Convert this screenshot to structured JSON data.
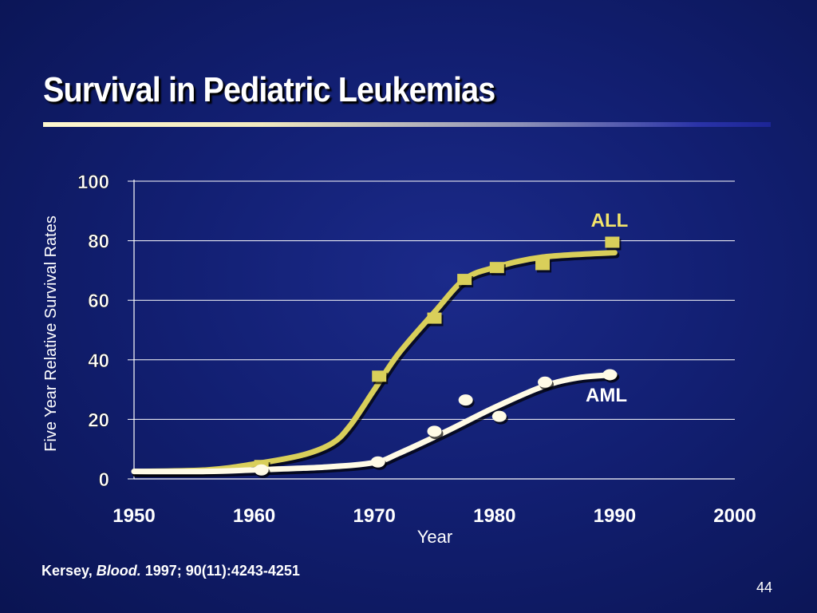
{
  "slide": {
    "title": "Survival in Pediatric Leukemias",
    "page_number": "44",
    "citation": {
      "author": "Kersey,",
      "journal": "Blood.",
      "details": "1997; 90(11):4243-4251"
    }
  },
  "colors": {
    "background": "#121f72",
    "all_series": "#d9cf5a",
    "aml_series": "#fffbe6",
    "text": "#ffffff",
    "all_label": "#f3e56a"
  },
  "chart_data": {
    "type": "line",
    "title": "",
    "xlabel": "Year",
    "ylabel": "Five Year Relative Survival Rates",
    "xlim": [
      1950,
      2000
    ],
    "ylim": [
      0,
      100
    ],
    "x_ticks": [
      "1950",
      "1960",
      "1970",
      "1980",
      "1990",
      "2000"
    ],
    "y_ticks": [
      "0",
      "20",
      "40",
      "60",
      "80",
      "100"
    ],
    "grid": "horizontal",
    "series": [
      {
        "name": "ALL",
        "marker": "square",
        "points": [
          [
            1960.6,
            4.5
          ],
          [
            1970.4,
            34.5
          ],
          [
            1975,
            54
          ],
          [
            1977.5,
            67
          ],
          [
            1980.2,
            71
          ],
          [
            1984,
            72
          ],
          [
            1989.8,
            79.5
          ]
        ],
        "curve": [
          [
            1950,
            2.5
          ],
          [
            1956,
            3
          ],
          [
            1960,
            5
          ],
          [
            1964,
            8
          ],
          [
            1966.5,
            12
          ],
          [
            1968,
            18
          ],
          [
            1970,
            30
          ],
          [
            1972,
            42
          ],
          [
            1975,
            56
          ],
          [
            1977.5,
            67
          ],
          [
            1980,
            71
          ],
          [
            1984,
            74.5
          ],
          [
            1990,
            76
          ]
        ]
      },
      {
        "name": "AML",
        "marker": "circle",
        "points": [
          [
            1960.6,
            3
          ],
          [
            1970.3,
            5.7
          ],
          [
            1975,
            16
          ],
          [
            1977.6,
            26.5
          ],
          [
            1980.4,
            21
          ],
          [
            1984.2,
            32.5
          ],
          [
            1989.6,
            35
          ]
        ],
        "curve": [
          [
            1950,
            2.5
          ],
          [
            1956,
            2.5
          ],
          [
            1960,
            3
          ],
          [
            1966,
            4
          ],
          [
            1970,
            5.5
          ],
          [
            1972,
            8.5
          ],
          [
            1976,
            16
          ],
          [
            1980,
            24
          ],
          [
            1984,
            31
          ],
          [
            1987,
            34
          ],
          [
            1990,
            35
          ]
        ]
      }
    ]
  }
}
